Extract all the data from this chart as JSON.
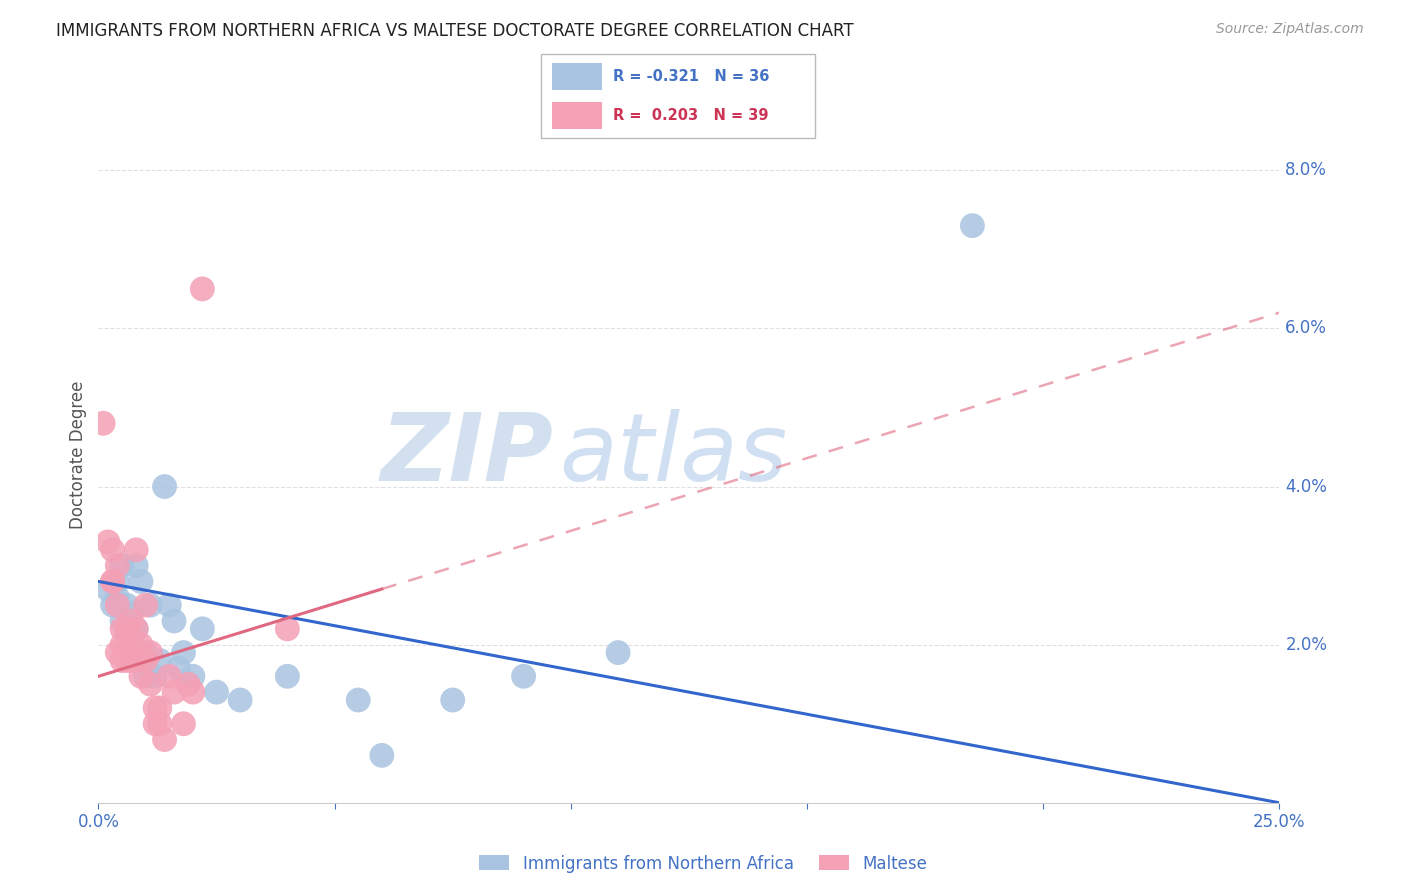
{
  "title": "IMMIGRANTS FROM NORTHERN AFRICA VS MALTESE DOCTORATE DEGREE CORRELATION CHART",
  "source": "Source: ZipAtlas.com",
  "ylabel": "Doctorate Degree",
  "legend_label_blue": "Immigrants from Northern Africa",
  "legend_label_pink": "Maltese",
  "legend_blue_r": "R = -0.321",
  "legend_blue_n": "N = 36",
  "legend_pink_r": "R =  0.203",
  "legend_pink_n": "N = 39",
  "xlim": [
    0.0,
    0.25
  ],
  "ylim": [
    0.0,
    0.088
  ],
  "xticks": [
    0.0,
    0.05,
    0.1,
    0.15,
    0.2,
    0.25
  ],
  "yticks_right": [
    0.0,
    0.02,
    0.04,
    0.06,
    0.08
  ],
  "ytick_labels_right": [
    "",
    "2.0%",
    "4.0%",
    "6.0%",
    "8.0%"
  ],
  "xtick_labels": [
    "0.0%",
    "",
    "",
    "",
    "",
    "25.0%"
  ],
  "blue_color": "#a8c4e0",
  "pink_color": "#f4a0b5",
  "blue_line_color": "#3366cc",
  "pink_line_color": "#e06880",
  "axis_color": "#4472c4",
  "grid_color": "#e0e0e0",
  "background_color": "#ffffff",
  "blue_scatter_x": [
    0.002,
    0.003,
    0.004,
    0.004,
    0.005,
    0.005,
    0.006,
    0.006,
    0.007,
    0.007,
    0.008,
    0.008,
    0.008,
    0.009,
    0.009,
    0.01,
    0.01,
    0.011,
    0.012,
    0.013,
    0.014,
    0.015,
    0.016,
    0.017,
    0.018,
    0.02,
    0.022,
    0.025,
    0.03,
    0.04,
    0.055,
    0.06,
    0.075,
    0.09,
    0.11,
    0.185
  ],
  "blue_scatter_y": [
    0.027,
    0.025,
    0.026,
    0.028,
    0.023,
    0.03,
    0.022,
    0.025,
    0.024,
    0.02,
    0.018,
    0.03,
    0.022,
    0.018,
    0.028,
    0.019,
    0.016,
    0.025,
    0.016,
    0.018,
    0.04,
    0.025,
    0.023,
    0.017,
    0.019,
    0.016,
    0.022,
    0.014,
    0.013,
    0.016,
    0.013,
    0.006,
    0.013,
    0.016,
    0.019,
    0.073
  ],
  "pink_scatter_x": [
    0.001,
    0.002,
    0.003,
    0.003,
    0.003,
    0.004,
    0.004,
    0.004,
    0.005,
    0.005,
    0.005,
    0.006,
    0.006,
    0.006,
    0.007,
    0.007,
    0.007,
    0.008,
    0.008,
    0.008,
    0.008,
    0.009,
    0.009,
    0.01,
    0.01,
    0.011,
    0.011,
    0.012,
    0.012,
    0.013,
    0.013,
    0.014,
    0.015,
    0.016,
    0.018,
    0.019,
    0.02,
    0.022,
    0.04
  ],
  "pink_scatter_y": [
    0.048,
    0.033,
    0.032,
    0.028,
    0.028,
    0.03,
    0.025,
    0.019,
    0.022,
    0.02,
    0.018,
    0.022,
    0.019,
    0.018,
    0.018,
    0.02,
    0.023,
    0.032,
    0.022,
    0.019,
    0.018,
    0.02,
    0.016,
    0.025,
    0.018,
    0.015,
    0.019,
    0.012,
    0.01,
    0.012,
    0.01,
    0.008,
    0.016,
    0.014,
    0.01,
    0.015,
    0.014,
    0.065,
    0.022
  ],
  "blue_trend": [
    0.0,
    0.028,
    0.25,
    0.0
  ],
  "pink_trend": [
    0.0,
    0.016,
    0.25,
    0.062
  ],
  "pink_trend_dashed": [
    0.06,
    0.25,
    0.062
  ],
  "watermark_zip": "ZIP",
  "watermark_atlas": "atlas"
}
